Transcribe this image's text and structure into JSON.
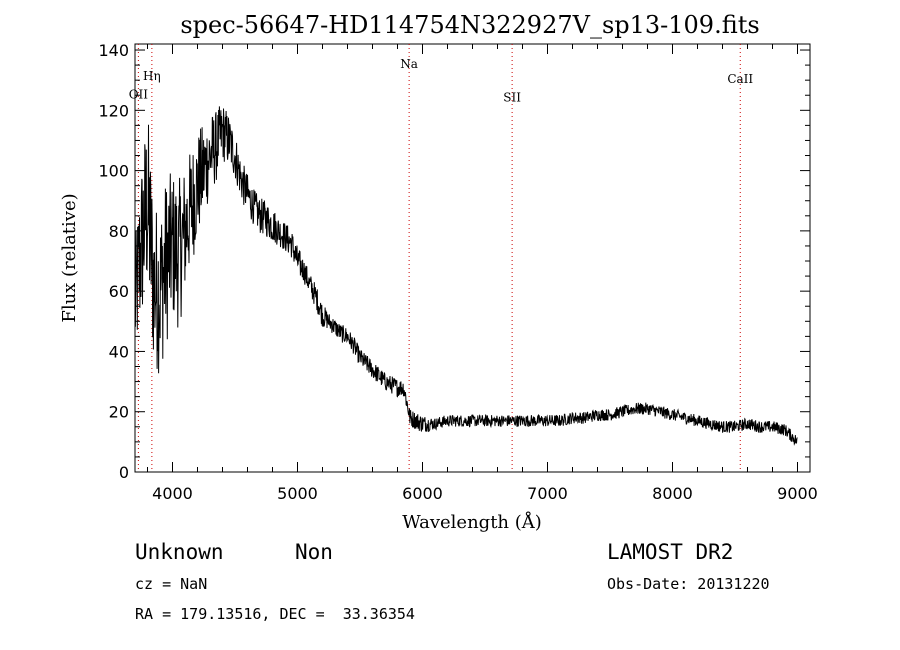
{
  "chart_data": {
    "type": "line",
    "title": "spec-56647-HD114754N322927V_sp13-109.fits",
    "xlabel": "Wavelength (Å)",
    "ylabel": "Flux (relative)",
    "xlim": [
      3700,
      9100
    ],
    "ylim": [
      0,
      142
    ],
    "x_ticks": [
      4000,
      5000,
      6000,
      7000,
      8000,
      9000
    ],
    "y_ticks": [
      0,
      20,
      40,
      60,
      80,
      100,
      120,
      140
    ],
    "grid": false,
    "series": [
      {
        "x": [
          3700,
          3750,
          3800,
          3850,
          3900,
          3950,
          4000,
          4050,
          4100,
          4150,
          4200,
          4250,
          4300,
          4350,
          4400,
          4450,
          4500,
          4550,
          4600,
          4650,
          4700,
          4750,
          4800,
          4850,
          4900,
          4950,
          5000,
          5050,
          5100,
          5150,
          5200,
          5250,
          5300,
          5350,
          5400,
          5450,
          5500,
          5550,
          5600,
          5650,
          5700,
          5750,
          5800,
          5850,
          5900,
          5950,
          6000,
          6100,
          6200,
          6300,
          6400,
          6500,
          6600,
          6700,
          6800,
          6900,
          7000,
          7100,
          7200,
          7300,
          7400,
          7500,
          7600,
          7700,
          7800,
          7900,
          8000,
          8100,
          8200,
          8300,
          8400,
          8500,
          8600,
          8700,
          8800,
          8900,
          8950,
          9000
        ],
        "y": [
          55,
          75,
          90,
          62,
          60,
          70,
          75,
          72,
          80,
          88,
          95,
          100,
          105,
          108,
          113,
          110,
          105,
          97,
          92,
          88,
          85,
          84,
          82,
          80,
          78,
          76,
          70,
          67,
          62,
          58,
          52,
          50,
          48,
          46,
          45,
          42,
          38,
          36,
          34,
          32,
          30,
          29,
          28,
          28,
          18,
          17,
          16,
          16,
          17,
          17,
          17,
          17,
          17,
          17,
          17,
          17,
          17,
          17,
          18,
          18,
          19,
          19,
          20,
          21,
          21,
          20,
          19,
          18,
          17,
          16,
          15,
          15,
          16,
          15,
          15,
          14,
          12,
          10
        ],
        "noise_amplitude": [
          20,
          28,
          32,
          28,
          28,
          28,
          25,
          25,
          22,
          20,
          18,
          16,
          14,
          12,
          10,
          9,
          8,
          7,
          7,
          6,
          6,
          6,
          6,
          5,
          5,
          5,
          5,
          4,
          4,
          4,
          4,
          3,
          3,
          3,
          3,
          3,
          3,
          3,
          3,
          3,
          3,
          3,
          3,
          3,
          3,
          3,
          3,
          2,
          2,
          2,
          2,
          2,
          2,
          2,
          2,
          2,
          2,
          2,
          2,
          2,
          2,
          2,
          2,
          2,
          2,
          2,
          2,
          2,
          2,
          2,
          2,
          2,
          2,
          2,
          2,
          2,
          2,
          2
        ]
      }
    ],
    "line_markers": [
      {
        "label": "OII",
        "x": 3727,
        "label_y": 124
      },
      {
        "label": "Hη",
        "x": 3835,
        "label_y": 130
      },
      {
        "label": "Na",
        "x": 5893,
        "label_y": 134
      },
      {
        "label": "SII",
        "x": 6717,
        "label_y": 123
      },
      {
        "label": "CaII",
        "x": 8542,
        "label_y": 129
      }
    ],
    "line_color": "#000000",
    "marker_color": "#cc0000"
  },
  "info": {
    "class": "Unknown",
    "subclass": "Non",
    "survey": "LAMOST DR2",
    "cz": "cz = NaN",
    "obs_date": "Obs-Date: 20131220",
    "radec": "RA = 179.13516, DEC =  33.36354"
  }
}
